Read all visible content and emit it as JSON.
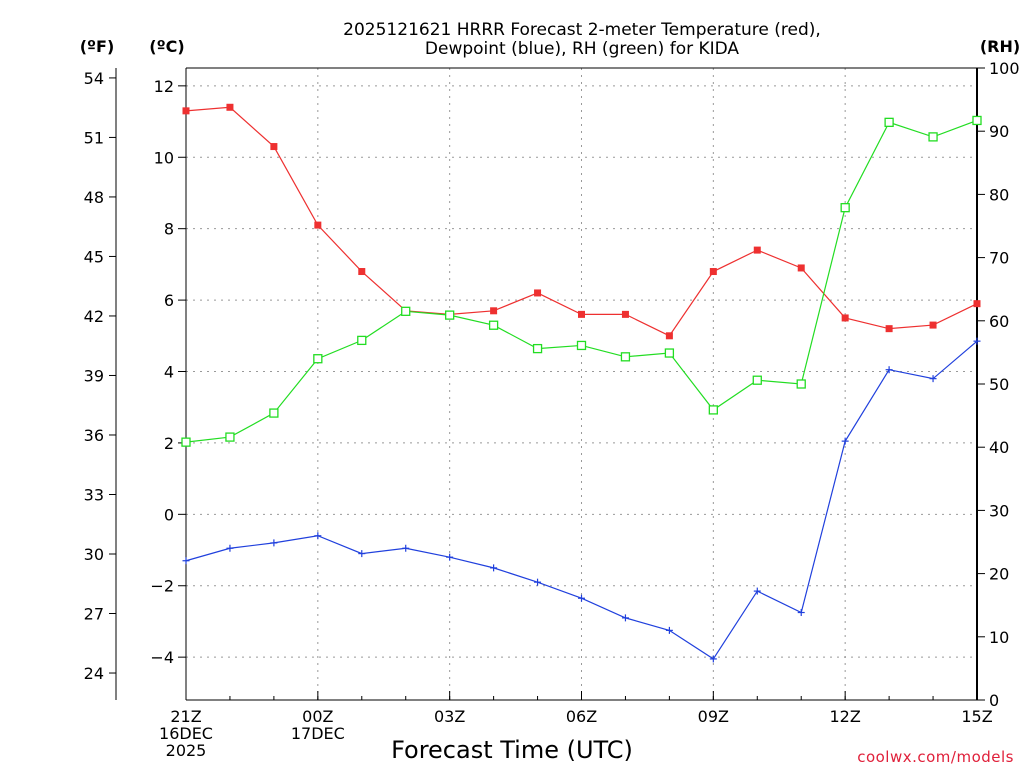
{
  "chart_data": {
    "type": "line",
    "title": [
      "2025121621 HRRR Forecast 2-meter Temperature (red),",
      "Dewpoint (blue), RH (green) for KIDA"
    ],
    "xlabel": "Forecast Time (UTC)",
    "credit": "coolwx.com/models",
    "units": {
      "fahrenheit": "(ºF)",
      "celsius": "(ºC)",
      "rh": "(RH)"
    },
    "x": [
      "21Z",
      "22Z",
      "23Z",
      "00Z",
      "01Z",
      "02Z",
      "03Z",
      "04Z",
      "05Z",
      "06Z",
      "07Z",
      "08Z",
      "09Z",
      "10Z",
      "11Z",
      "12Z",
      "13Z",
      "14Z",
      "15Z"
    ],
    "x_ticks": [
      {
        "index": 0,
        "lines": [
          "21Z",
          "16DEC",
          "2025"
        ]
      },
      {
        "index": 3,
        "lines": [
          "00Z",
          "17DEC"
        ]
      },
      {
        "index": 6,
        "lines": [
          "03Z"
        ]
      },
      {
        "index": 9,
        "lines": [
          "06Z"
        ]
      },
      {
        "index": 12,
        "lines": [
          "09Z"
        ]
      },
      {
        "index": 15,
        "lines": [
          "12Z"
        ]
      },
      {
        "index": 18,
        "lines": [
          "15Z"
        ]
      }
    ],
    "left_axis_c": {
      "ylim": [
        -5.2,
        12.5
      ],
      "ticks": [
        "12",
        "10",
        "8",
        "6",
        "4",
        "2",
        "0",
        "−2",
        "−4"
      ],
      "tick_values": [
        12,
        10,
        8,
        6,
        4,
        2,
        0,
        -2,
        -4
      ]
    },
    "left_axis_f": {
      "ylim": [
        22.64,
        54.5
      ],
      "ticks": [
        "54",
        "51",
        "48",
        "45",
        "42",
        "39",
        "36",
        "33",
        "30",
        "27",
        "24"
      ],
      "tick_values": [
        54,
        51,
        48,
        45,
        42,
        39,
        36,
        33,
        30,
        27,
        24
      ]
    },
    "right_axis_rh": {
      "ylim": [
        0,
        100
      ],
      "ticks": [
        "100",
        "90",
        "80",
        "70",
        "60",
        "50",
        "40",
        "30",
        "20",
        "10",
        "0"
      ],
      "tick_values": [
        100,
        90,
        80,
        70,
        60,
        50,
        40,
        30,
        20,
        10,
        0
      ]
    },
    "grid": true,
    "series": [
      {
        "name": "Temperature",
        "color": "#ee3030",
        "marker": "filled-square",
        "axis": "c",
        "values": [
          11.3,
          11.4,
          10.3,
          8.1,
          6.8,
          5.7,
          5.6,
          5.7,
          6.2,
          5.6,
          5.6,
          5.0,
          6.8,
          7.4,
          6.9,
          5.5,
          5.2,
          5.3,
          5.9
        ]
      },
      {
        "name": "Dewpoint",
        "color": "#2040dd",
        "marker": "plus",
        "axis": "c",
        "values": [
          -1.3,
          -0.95,
          -0.8,
          -0.6,
          -1.1,
          -0.95,
          -1.2,
          -1.5,
          -1.9,
          -2.35,
          -2.9,
          -3.25,
          -4.05,
          -2.15,
          -2.75,
          2.05,
          4.05,
          3.8,
          4.85
        ]
      },
      {
        "name": "RH",
        "color": "#22dd22",
        "marker": "open-square",
        "axis": "rh",
        "values": [
          40.8,
          41.6,
          45.4,
          54.0,
          56.9,
          61.5,
          60.9,
          59.3,
          55.6,
          56.1,
          54.3,
          54.9,
          45.9,
          50.6,
          50.0,
          77.9,
          91.4,
          89.1,
          91.7
        ]
      }
    ]
  }
}
